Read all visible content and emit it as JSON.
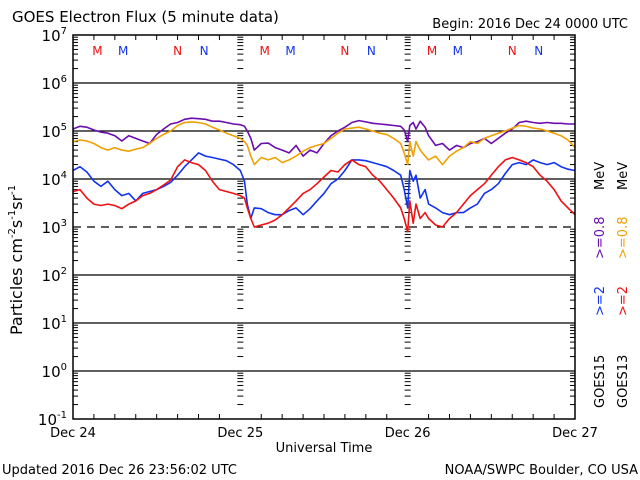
{
  "chart_data": {
    "type": "line",
    "title": "GOES Electron Flux (5 minute data)",
    "begin_label": "Begin: 2016 Dec 24 0000 UTC",
    "xlabel": "Universal Time",
    "ylabel_main": "Particles cm",
    "ylabel_sup1": "-2",
    "ylabel_s": "s",
    "ylabel_sup2": "-1",
    "ylabel_sr": "sr",
    "ylabel_sup3": "-1",
    "y_scale": "log",
    "ylim_exp": [
      -1,
      7
    ],
    "xlim_hours": [
      0,
      72
    ],
    "x_ticks": [
      {
        "hour": 0,
        "label": "Dec 24"
      },
      {
        "hour": 24,
        "label": "Dec 25"
      },
      {
        "hour": 48,
        "label": "Dec 26"
      },
      {
        "hour": 72,
        "label": "Dec 27"
      }
    ],
    "y_ticks": [
      {
        "exp": 7,
        "base": "10",
        "sup": "7"
      },
      {
        "exp": 6,
        "base": "10",
        "sup": "6"
      },
      {
        "exp": 5,
        "base": "10",
        "sup": "5"
      },
      {
        "exp": 4,
        "base": "10",
        "sup": "4"
      },
      {
        "exp": 3,
        "base": "10",
        "sup": "3"
      },
      {
        "exp": 2,
        "base": "10",
        "sup": "2"
      },
      {
        "exp": 1,
        "base": "10",
        "sup": "1"
      },
      {
        "exp": 0,
        "base": "10",
        "sup": "0"
      },
      {
        "exp": -1,
        "base": "10",
        "sup": "-1"
      }
    ],
    "threshold_exp": 3,
    "midnight_markers": [
      {
        "hour": 3.5,
        "label": "M",
        "color": "#ee1111"
      },
      {
        "hour": 7.2,
        "label": "M",
        "color": "#1133ee"
      },
      {
        "hour": 15.0,
        "label": "N",
        "color": "#ee1111"
      },
      {
        "hour": 18.8,
        "label": "N",
        "color": "#1133ee"
      },
      {
        "hour": 27.5,
        "label": "M",
        "color": "#ee1111"
      },
      {
        "hour": 31.2,
        "label": "M",
        "color": "#1133ee"
      },
      {
        "hour": 39.0,
        "label": "N",
        "color": "#ee1111"
      },
      {
        "hour": 42.8,
        "label": "N",
        "color": "#1133ee"
      },
      {
        "hour": 51.5,
        "label": "M",
        "color": "#ee1111"
      },
      {
        "hour": 55.2,
        "label": "M",
        "color": "#1133ee"
      },
      {
        "hour": 63.0,
        "label": "N",
        "color": "#ee1111"
      },
      {
        "hour": 66.8,
        "label": "N",
        "color": "#1133ee"
      }
    ],
    "legend": {
      "placement": "right",
      "goes15": "GOES15",
      "goes13": "GOES13",
      "g15_2": ">=2",
      "g13_2": ">=2",
      "g15_08": ">=0.8",
      "g13_08": ">=0.8",
      "unit": "MeV"
    },
    "series": [
      {
        "name": "GOES15 >=0.8 MeV",
        "color": "#6a0dad",
        "hours": [
          0,
          1,
          2,
          3,
          4,
          5,
          6,
          7,
          8,
          9,
          10,
          11,
          12,
          13,
          14,
          15,
          16,
          17,
          18,
          19,
          20,
          21,
          22,
          23,
          24,
          24.6,
          25,
          25.5,
          26,
          27,
          28,
          29,
          30,
          31,
          32,
          33,
          34,
          35,
          36,
          37,
          38,
          39,
          40,
          41,
          42,
          43,
          44,
          45,
          46,
          47,
          47.5,
          48,
          48.3,
          48.8,
          49.2,
          49.8,
          50.5,
          51,
          52,
          53,
          54,
          55,
          56,
          57,
          58,
          59,
          60,
          61,
          62,
          63,
          64,
          65,
          66,
          67,
          68,
          69,
          70,
          71,
          72
        ],
        "values": [
          110000,
          125000,
          120000,
          105000,
          95000,
          90000,
          80000,
          62000,
          80000,
          70000,
          62000,
          55000,
          85000,
          110000,
          140000,
          150000,
          175000,
          185000,
          180000,
          175000,
          160000,
          160000,
          150000,
          140000,
          135000,
          125000,
          100000,
          70000,
          40000,
          55000,
          56000,
          45000,
          40000,
          35000,
          50000,
          30000,
          40000,
          35000,
          55000,
          80000,
          100000,
          120000,
          150000,
          165000,
          155000,
          145000,
          140000,
          135000,
          130000,
          125000,
          105000,
          60000,
          130000,
          150000,
          110000,
          160000,
          120000,
          80000,
          50000,
          55000,
          40000,
          50000,
          45000,
          55000,
          60000,
          70000,
          55000,
          70000,
          90000,
          110000,
          150000,
          160000,
          150000,
          145000,
          150000,
          145000,
          145000,
          140000,
          140000
        ]
      },
      {
        "name": "GOES13 >=0.8 MeV",
        "color": "#f0a000",
        "hours": [
          0,
          1,
          2,
          3,
          4,
          5,
          6,
          7,
          8,
          9,
          10,
          11,
          12,
          13,
          14,
          15,
          16,
          17,
          18,
          19,
          20,
          21,
          22,
          23,
          24,
          24.6,
          25,
          25.5,
          26,
          27,
          28,
          29,
          30,
          31,
          32,
          33,
          34,
          35,
          36,
          37,
          38,
          39,
          40,
          41,
          42,
          43,
          44,
          45,
          46,
          47,
          47.5,
          48,
          48.3,
          48.8,
          49.2,
          49.8,
          50.5,
          51,
          52,
          53,
          54,
          55,
          56,
          57,
          58,
          59,
          60,
          61,
          62,
          63,
          64,
          65,
          66,
          67,
          68,
          69,
          70,
          71,
          72
        ],
        "values": [
          60000,
          65000,
          62000,
          55000,
          45000,
          40000,
          45000,
          40000,
          38000,
          42000,
          45000,
          55000,
          70000,
          85000,
          100000,
          130000,
          150000,
          155000,
          150000,
          140000,
          120000,
          105000,
          90000,
          80000,
          70000,
          60000,
          50000,
          30000,
          20000,
          28000,
          25000,
          28000,
          22000,
          25000,
          30000,
          38000,
          45000,
          50000,
          55000,
          70000,
          90000,
          110000,
          115000,
          120000,
          110000,
          100000,
          90000,
          85000,
          70000,
          55000,
          35000,
          20000,
          60000,
          30000,
          60000,
          40000,
          30000,
          25000,
          30000,
          20000,
          30000,
          38000,
          45000,
          60000,
          55000,
          70000,
          80000,
          90000,
          100000,
          115000,
          130000,
          125000,
          115000,
          110000,
          100000,
          90000,
          80000,
          65000,
          45000
        ]
      },
      {
        "name": "GOES15 >=2 MeV",
        "color": "#1133ee",
        "hours": [
          0,
          1,
          2,
          3,
          4,
          5,
          6,
          7,
          8,
          9,
          10,
          11,
          12,
          13,
          14,
          15,
          16,
          17,
          18,
          19,
          20,
          21,
          22,
          23,
          24,
          24.6,
          25,
          25.5,
          26,
          27,
          28,
          29,
          30,
          31,
          32,
          33,
          34,
          35,
          36,
          37,
          38,
          39,
          40,
          41,
          42,
          43,
          44,
          45,
          46,
          47,
          47.5,
          48,
          48.3,
          48.8,
          49.2,
          49.8,
          50.5,
          51,
          52,
          53,
          54,
          55,
          56,
          57,
          58,
          59,
          60,
          61,
          62,
          63,
          64,
          65,
          66,
          67,
          68,
          69,
          70,
          71,
          72
        ],
        "values": [
          15000,
          18000,
          14000,
          9000,
          7000,
          9000,
          6000,
          4500,
          5000,
          3500,
          5000,
          5500,
          6000,
          7000,
          8500,
          12000,
          18000,
          25000,
          35000,
          30000,
          28000,
          26000,
          24000,
          20000,
          15000,
          9000,
          3000,
          1500,
          2500,
          2400,
          2000,
          1800,
          1800,
          2200,
          2500,
          1800,
          2400,
          3500,
          5000,
          8000,
          10000,
          15000,
          25000,
          25000,
          24000,
          22000,
          20000,
          18000,
          15000,
          12000,
          6000,
          2500,
          15000,
          9000,
          12000,
          4000,
          6000,
          3000,
          2500,
          2000,
          1800,
          2000,
          2000,
          2500,
          3000,
          5000,
          6000,
          8000,
          13000,
          20000,
          22000,
          20000,
          25000,
          22000,
          20000,
          22000,
          18000,
          16000,
          15000
        ]
      },
      {
        "name": "GOES13 >=2 MeV",
        "color": "#ee1111",
        "hours": [
          0,
          1,
          2,
          3,
          4,
          5,
          6,
          7,
          8,
          9,
          10,
          11,
          12,
          13,
          14,
          15,
          16,
          17,
          18,
          19,
          20,
          21,
          22,
          23,
          24,
          24.6,
          25,
          25.5,
          26,
          27,
          28,
          29,
          30,
          31,
          32,
          33,
          34,
          35,
          36,
          37,
          38,
          39,
          40,
          41,
          42,
          43,
          44,
          45,
          46,
          47,
          47.5,
          48,
          48.3,
          48.8,
          49.2,
          49.8,
          50.5,
          51,
          52,
          53,
          54,
          55,
          56,
          57,
          58,
          59,
          60,
          61,
          62,
          63,
          64,
          65,
          66,
          67,
          68,
          69,
          70,
          71,
          72
        ],
        "values": [
          5500,
          6000,
          4000,
          3000,
          2800,
          3000,
          2800,
          2400,
          3000,
          3500,
          4500,
          5000,
          6000,
          7500,
          9500,
          18000,
          25000,
          22000,
          20000,
          15000,
          9000,
          6000,
          5500,
          5000,
          4500,
          4000,
          2500,
          1500,
          1000,
          1100,
          1200,
          1400,
          1800,
          2500,
          3500,
          5000,
          6000,
          8000,
          11000,
          15000,
          14000,
          20000,
          25000,
          20000,
          18000,
          12000,
          9000,
          6000,
          4000,
          2500,
          1500,
          800,
          3500,
          1200,
          3000,
          1500,
          2000,
          1500,
          1100,
          1000,
          1500,
          2000,
          3000,
          4500,
          6000,
          8000,
          12000,
          18000,
          25000,
          28000,
          25000,
          22000,
          18000,
          12000,
          9000,
          6000,
          3500,
          2500,
          1800
        ]
      }
    ]
  },
  "footer": {
    "updated": "Updated 2016 Dec 26 23:56:02 UTC",
    "credit": "NOAA/SWPC Boulder, CO USA"
  }
}
